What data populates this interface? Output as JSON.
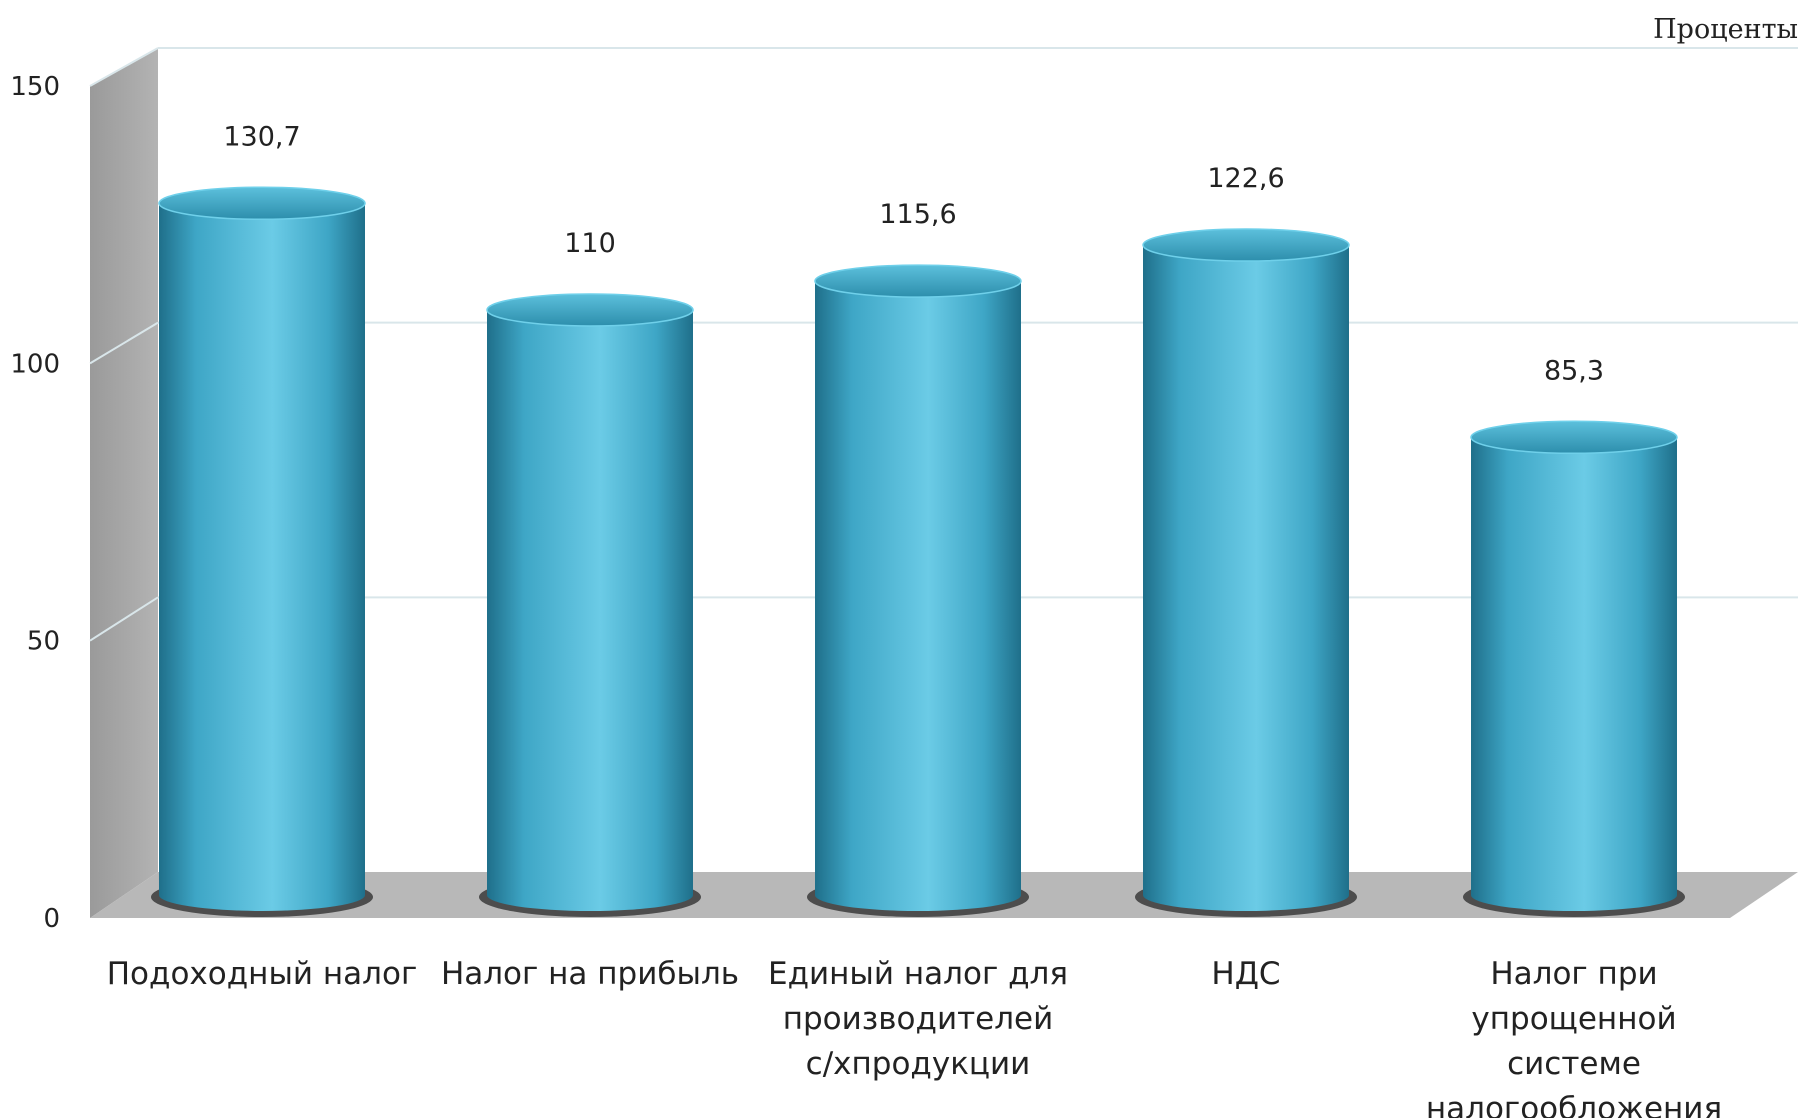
{
  "chart_data": {
    "type": "bar",
    "title": "",
    "unit_label": "Проценты",
    "categories": [
      [
        "Подоходный налог"
      ],
      [
        "Налог на прибыль"
      ],
      [
        "Единый налог для",
        "производителей",
        "с/хпродукции"
      ],
      [
        "НДС"
      ],
      [
        "Налог при",
        "упрощенной",
        "системе",
        "налогообложения"
      ]
    ],
    "values": [
      130.7,
      110,
      115.6,
      122.6,
      85.3
    ],
    "value_labels": [
      "130,7",
      "110",
      "115,6",
      "122,6",
      "85,3"
    ],
    "ylim": [
      0,
      150
    ],
    "yticks": [
      0,
      50,
      100,
      150
    ],
    "grid": true,
    "colors": {
      "bar_light": "#6bcbe6",
      "bar_mid": "#3ea6c6",
      "bar_dark": "#1f6f8a",
      "wall": "#a6a6a6",
      "floor": "#b8b8b8",
      "grid": "#d9e6ea"
    }
  }
}
